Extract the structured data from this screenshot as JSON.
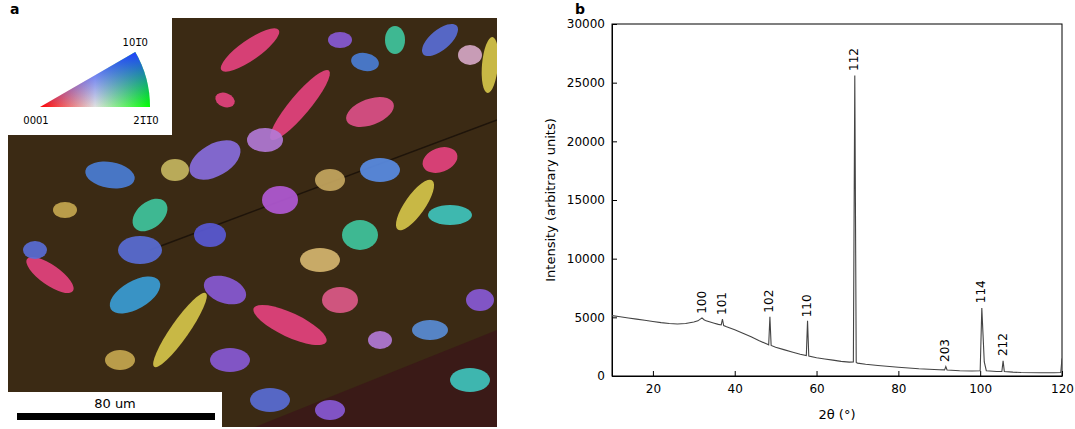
{
  "panel_a": {
    "panel_label": "a",
    "ipf_labels": [
      "0001",
      "101̅0",
      "21̅1̅0"
    ],
    "scale_bar": "80 um"
  },
  "chart_data": {
    "type": "line",
    "panel_label": "b",
    "x_label": "2θ (°)",
    "y_label": "Intensity (arbitrary units)",
    "color": "#444444",
    "xlim": [
      10,
      120
    ],
    "ylim": [
      0,
      30000
    ],
    "xticks": [
      20,
      40,
      60,
      80,
      100,
      120
    ],
    "yticks": [
      0,
      5000,
      10000,
      15000,
      20000,
      25000,
      30000
    ],
    "x": [
      10,
      12,
      14,
      16,
      18,
      20,
      22,
      24,
      26,
      28,
      30,
      31,
      32,
      32.5,
      33,
      34,
      35,
      36,
      36.7,
      37,
      37.3,
      38,
      40,
      42,
      44,
      46,
      48,
      48.3,
      48.6,
      48.9,
      50,
      52,
      54,
      56,
      57.5,
      57.8,
      58.1,
      60,
      62,
      64,
      66,
      68,
      69,
      69.35,
      69.7,
      70,
      72,
      75,
      80,
      85,
      90,
      91.3,
      91.6,
      91.9,
      95,
      98,
      100,
      100.4,
      100.7,
      101,
      101.5,
      104,
      105.3,
      105.6,
      105.9,
      108,
      110,
      115,
      118,
      119.7,
      120
    ],
    "values": [
      5150,
      5050,
      4950,
      4850,
      4750,
      4650,
      4550,
      4470,
      4430,
      4480,
      4600,
      4700,
      4950,
      4800,
      4700,
      4600,
      4500,
      4400,
      4350,
      4850,
      4300,
      4200,
      3950,
      3650,
      3350,
      3000,
      2700,
      2650,
      5050,
      2600,
      2450,
      2250,
      2050,
      1850,
      1750,
      4700,
      1700,
      1550,
      1450,
      1350,
      1250,
      1180,
      1200,
      25600,
      1150,
      1100,
      1000,
      900,
      750,
      620,
      530,
      520,
      800,
      510,
      450,
      420,
      450,
      5800,
      3500,
      1200,
      450,
      380,
      380,
      1300,
      390,
      330,
      300,
      280,
      280,
      300,
      1500
    ],
    "annotations": [
      {
        "text": "100",
        "x": 32,
        "y": 5300
      },
      {
        "text": "101",
        "x": 37,
        "y": 5200
      },
      {
        "text": "102",
        "x": 48.6,
        "y": 5400
      },
      {
        "text": "110",
        "x": 57.8,
        "y": 5000
      },
      {
        "text": "112",
        "x": 69.35,
        "y": 26000
      },
      {
        "text": "203",
        "x": 91.6,
        "y": 1200
      },
      {
        "text": "114",
        "x": 100.4,
        "y": 6200
      },
      {
        "text": "212",
        "x": 105.6,
        "y": 1700
      }
    ]
  }
}
